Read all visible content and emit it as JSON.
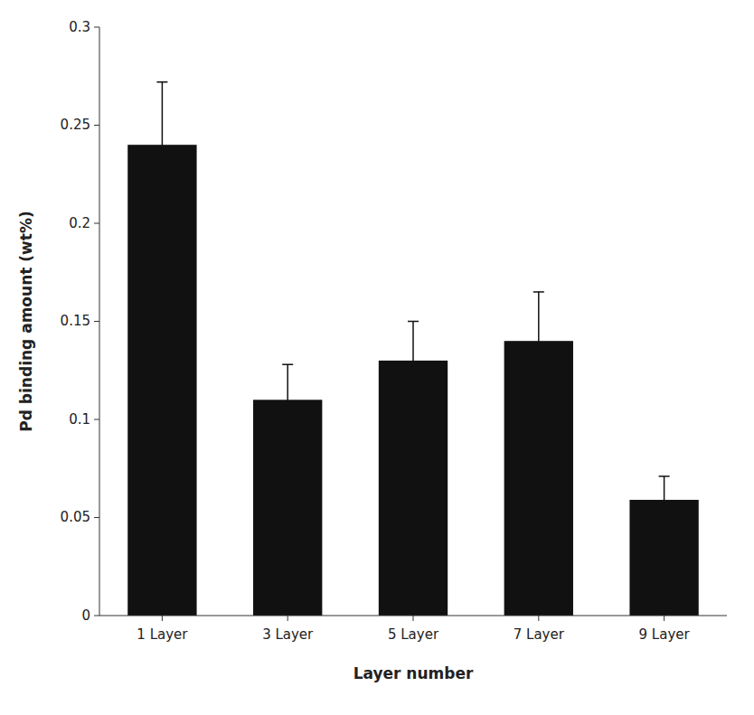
{
  "chart_data": {
    "type": "bar",
    "categories": [
      "1 Layer",
      "3 Layer",
      "5 Layer",
      "7 Layer",
      "9 Layer"
    ],
    "values": [
      0.24,
      0.11,
      0.13,
      0.14,
      0.059
    ],
    "errors": [
      0.032,
      0.018,
      0.02,
      0.025,
      0.012
    ],
    "color": "#111111",
    "xlabel": "Layer number",
    "ylabel": "Pd binding amount (wt%)",
    "ylim": [
      0,
      0.3
    ],
    "yticks": [
      0,
      0.05,
      0.1,
      0.15,
      0.2,
      0.25,
      0.3
    ],
    "grid": false
  }
}
